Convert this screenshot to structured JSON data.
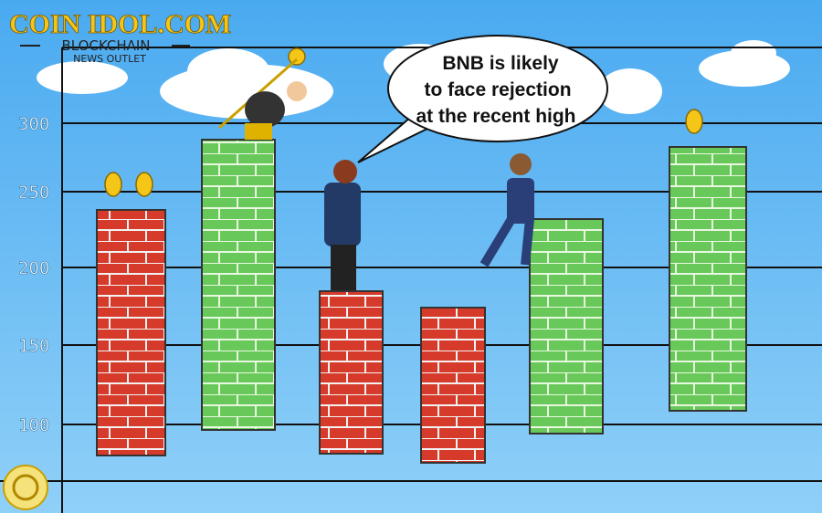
{
  "logo": {
    "name": "COIN IDOL.COM",
    "tagline": "BLOCKCHAIN",
    "subtagline": "NEWS OUTLET"
  },
  "axis_labels": [
    "300",
    "250",
    "200",
    "150",
    "100"
  ],
  "speech_bubble": {
    "lines": [
      "BNB is likely",
      "to face rejection",
      "at the recent high"
    ]
  }
}
